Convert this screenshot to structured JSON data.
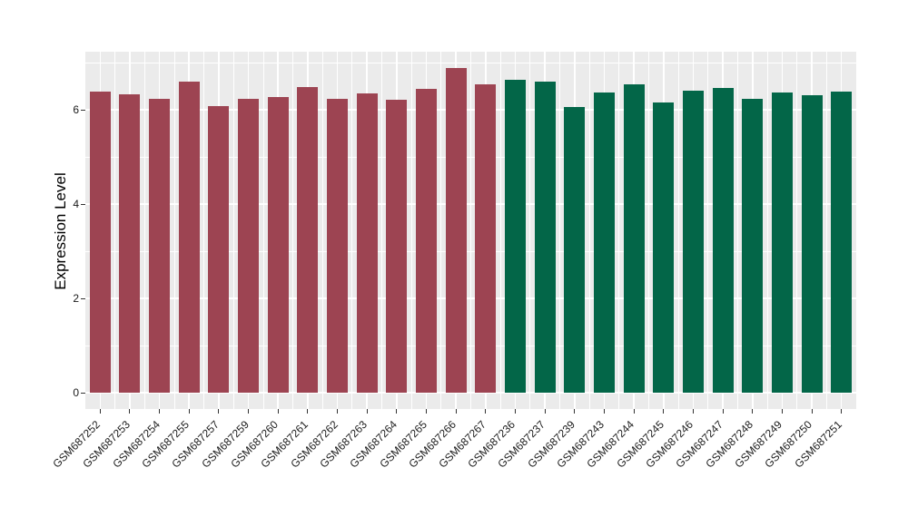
{
  "figure": {
    "background": "#FFFFFF",
    "panel_background": "#EBEBEB",
    "gridline_color": "#FFFFFF",
    "tick_color": "#333333",
    "axis_text_color": "#1a1a1a"
  },
  "chart_data": {
    "type": "bar",
    "title": "",
    "xlabel": "",
    "ylabel": "Expression Level",
    "categories": [
      "GSM687252",
      "GSM687253",
      "GSM687254",
      "GSM687255",
      "GSM687257",
      "GSM687259",
      "GSM687260",
      "GSM687261",
      "GSM687262",
      "GSM687263",
      "GSM687264",
      "GSM687265",
      "GSM687266",
      "GSM687267",
      "GSM687236",
      "GSM687237",
      "GSM687239",
      "GSM687243",
      "GSM687244",
      "GSM687245",
      "GSM687246",
      "GSM687247",
      "GSM687248",
      "GSM687249",
      "GSM687250",
      "GSM687251"
    ],
    "values": [
      6.38,
      6.32,
      6.23,
      6.6,
      6.07,
      6.24,
      6.26,
      6.49,
      6.24,
      6.35,
      6.21,
      6.44,
      6.89,
      6.54,
      6.63,
      6.6,
      6.06,
      6.37,
      6.53,
      6.15,
      6.4,
      6.47,
      6.24,
      6.37,
      6.3,
      6.38
    ],
    "bar_color_groups": [
      "maroon",
      "maroon",
      "maroon",
      "maroon",
      "maroon",
      "maroon",
      "maroon",
      "maroon",
      "maroon",
      "maroon",
      "maroon",
      "maroon",
      "maroon",
      "maroon",
      "green",
      "green",
      "green",
      "green",
      "green",
      "green",
      "green",
      "green",
      "green",
      "green",
      "green",
      "green"
    ],
    "group_colors": {
      "maroon": "#9D4452",
      "green": "#036648"
    },
    "yticks": [
      0,
      2,
      4,
      6
    ],
    "yticks_minor": [
      1,
      3,
      5,
      7
    ],
    "ylim": [
      -0.36,
      7.25
    ],
    "grid": true,
    "legend_position": "none",
    "x_tick_rotation_deg": 45
  }
}
